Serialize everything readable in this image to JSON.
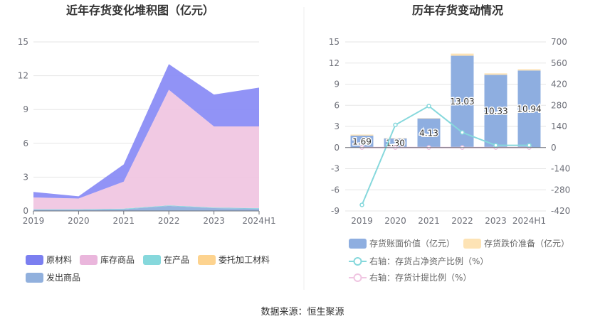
{
  "source": "数据来源：恒生聚源",
  "chart_data": [
    {
      "type": "area",
      "title": "近年存货变化堆积图（亿元）",
      "categories": [
        "2019",
        "2020",
        "2021",
        "2022",
        "2023",
        "2024H1"
      ],
      "yticks": [
        "0",
        "3",
        "6",
        "9",
        "12",
        "15"
      ],
      "ylim": [
        0,
        15
      ],
      "stacked": true,
      "series": [
        {
          "name": "发出商品",
          "color": "#91b0dd",
          "values": [
            0.1,
            0.1,
            0.15,
            0.45,
            0.25,
            0.2
          ]
        },
        {
          "name": "委托加工材料",
          "color": "#fdd38f",
          "values": [
            0.0,
            0.0,
            0.0,
            0.0,
            0.0,
            0.0
          ]
        },
        {
          "name": "在产品",
          "color": "#86d8dc",
          "values": [
            0.05,
            0.05,
            0.05,
            0.05,
            0.05,
            0.05
          ]
        },
        {
          "name": "库存商品",
          "color": "#f0c6e2",
          "values": [
            1.05,
            0.95,
            2.4,
            10.25,
            7.2,
            7.25
          ]
        },
        {
          "name": "原材料",
          "color": "#8b8df5",
          "values": [
            0.49,
            0.2,
            1.53,
            2.28,
            2.83,
            3.44
          ]
        }
      ],
      "legend": [
        {
          "name": "原材料",
          "color": "#7b7ff0"
        },
        {
          "name": "库存商品",
          "color": "#eab6dc"
        },
        {
          "name": "在产品",
          "color": "#86d8dc"
        },
        {
          "name": "委托加工材料",
          "color": "#fdd38f"
        },
        {
          "name": "发出商品",
          "color": "#91b0dd"
        }
      ]
    },
    {
      "type": "bar",
      "title": "历年存货变动情况",
      "categories": [
        "2019",
        "2020",
        "2021",
        "2022",
        "2023",
        "2024H1"
      ],
      "yticks_left": [
        "-9",
        "-6",
        "-3",
        "0",
        "3",
        "6",
        "9",
        "12",
        "15"
      ],
      "ylim_left": [
        -9,
        15
      ],
      "yticks_right": [
        "-420",
        "-280",
        "-140",
        "0",
        "140",
        "280",
        "420",
        "560",
        "700"
      ],
      "ylim_right": [
        -420,
        700
      ],
      "series": [
        {
          "name": "存货账面价值（亿元）",
          "type": "bar",
          "color": "#8eaee0",
          "values": [
            1.69,
            1.3,
            4.13,
            13.03,
            10.33,
            10.94
          ],
          "labels": [
            "1.69",
            "1.30",
            "4.13",
            "13.03",
            "10.33",
            "10.94"
          ]
        },
        {
          "name": "存货跌价准备（亿元）",
          "type": "bar",
          "color": "#fde3b5",
          "values": [
            0.15,
            0.05,
            0.05,
            0.3,
            0.2,
            0.18
          ]
        },
        {
          "name": "右轴：存货占净资产比例（%）",
          "type": "line",
          "axis": "right",
          "color": "#86d8dc",
          "values": [
            -380,
            150,
            275,
            100,
            15,
            15
          ]
        },
        {
          "name": "右轴：存货计提比例（%）",
          "type": "line",
          "axis": "right",
          "color": "#f0c6e2",
          "values": [
            0,
            0,
            0,
            0,
            0,
            0
          ]
        }
      ]
    }
  ]
}
